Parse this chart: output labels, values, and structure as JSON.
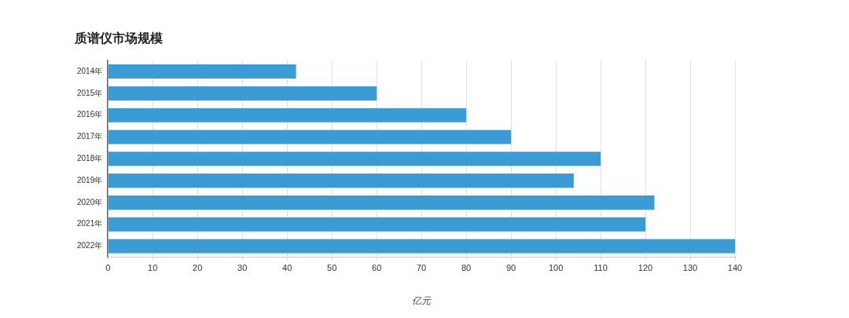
{
  "chart_data": {
    "type": "bar",
    "orientation": "horizontal",
    "title": "质谱仪市场规模",
    "xlabel": "亿元",
    "categories": [
      "2014年",
      "2015年",
      "2016年",
      "2017年",
      "2018年",
      "2019年",
      "2020年",
      "2021年",
      "2022年"
    ],
    "values": [
      42,
      60,
      80,
      90,
      110,
      104,
      122,
      120,
      140
    ],
    "color": "#3a9bd5",
    "xlim": [
      0,
      140
    ],
    "xticks": [
      0,
      10,
      20,
      30,
      40,
      50,
      60,
      70,
      80,
      90,
      100,
      110,
      120,
      130,
      140
    ],
    "grid": "x",
    "legend": false
  }
}
